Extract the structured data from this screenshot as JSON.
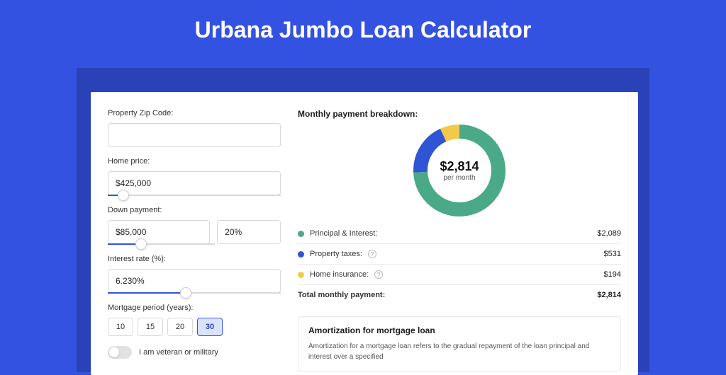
{
  "page": {
    "title": "Urbana Jumbo Loan Calculator",
    "background_color": "#3452e1",
    "shadow_color": "#2a42b8",
    "card_color": "#ffffff"
  },
  "form": {
    "zip_label": "Property Zip Code:",
    "zip_value": "",
    "home_price_label": "Home price:",
    "home_price_value": "$425,000",
    "home_price_slider_pct": 9,
    "down_payment_label": "Down payment:",
    "down_payment_value": "$85,000",
    "down_payment_pct_value": "20%",
    "down_payment_slider_pct": 31,
    "interest_label": "Interest rate (%):",
    "interest_value": "6.230%",
    "interest_slider_pct": 45,
    "period_label": "Mortgage period (years):",
    "periods": [
      "10",
      "15",
      "20",
      "30"
    ],
    "period_active_index": 3,
    "veteran_label": "I am veteran or military",
    "veteran_on": false
  },
  "breakdown": {
    "title": "Monthly payment breakdown:",
    "donut": {
      "total_display": "$2,814",
      "sub_label": "per month",
      "slices": [
        {
          "key": "principal_interest",
          "value": 2089,
          "color": "#4aa986"
        },
        {
          "key": "property_taxes",
          "value": 531,
          "color": "#2f55d4"
        },
        {
          "key": "home_insurance",
          "value": 194,
          "color": "#f2c94c"
        }
      ],
      "stroke_width": 20,
      "radius": 55,
      "inner_bg": "#ffffff"
    },
    "rows": [
      {
        "label": "Principal & Interest:",
        "color": "#4aa986",
        "value": "$2,089",
        "has_info": false
      },
      {
        "label": "Property taxes:",
        "color": "#2f55d4",
        "value": "$531",
        "has_info": true
      },
      {
        "label": "Home insurance:",
        "color": "#f2c94c",
        "value": "$194",
        "has_info": true
      }
    ],
    "total_label": "Total monthly payment:",
    "total_value": "$2,814"
  },
  "amortization": {
    "title": "Amortization for mortgage loan",
    "text": "Amortization for a mortgage loan refers to the gradual repayment of the loan principal and interest over a specified"
  }
}
